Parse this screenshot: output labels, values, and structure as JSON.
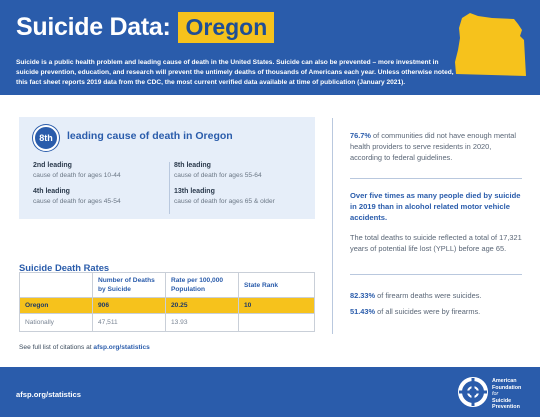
{
  "header": {
    "title": "Suicide Data:",
    "state": "Oregon",
    "intro": "Suicide is a public health problem and leading cause of death in the United States. Suicide can also be prevented – more investment in suicide prevention, education, and research will prevent the untimely deaths of thousands of Americans each year. Unless otherwise noted, this fact sheet reports 2019 data from the CDC, the most current verified data available at time of publication (January 2021)."
  },
  "rank": {
    "badge": "8th",
    "headline": "leading cause of death in Oregon",
    "causes": [
      {
        "label": "2nd leading",
        "sub": "cause of death for ages 10-44"
      },
      {
        "label": "4th leading",
        "sub": "cause of death for ages 45-54"
      },
      {
        "label": "8th leading",
        "sub": "cause of death for ages 55-64"
      },
      {
        "label": "13th leading",
        "sub": "cause of death for ages 65 & older"
      }
    ]
  },
  "table": {
    "title": "Suicide Death Rates",
    "headers": [
      "",
      "Number of Deaths by Suicide",
      "Rate per 100,000 Population",
      "State Rank"
    ],
    "rows": [
      [
        "Oregon",
        "906",
        "20.25",
        "10"
      ],
      [
        "Nationally",
        "47,511",
        "13.93",
        ""
      ]
    ]
  },
  "citation": {
    "prefix": "See full list of citations at",
    "link": "afsp.org/statistics"
  },
  "right": {
    "stat1_value": "76.7%",
    "stat1_text": "of communities did not have enough mental health providers to serve residents in 2020, according to federal guidelines.",
    "highlight": "Over five times as many people died by suicide in 2019 than in alcohol related motor vehicle accidents.",
    "ypll": "The total deaths to suicide reflected a total of 17,321 years of potential life lost (YPLL) before age 65.",
    "stat2_value": "82.33%",
    "stat2_text": "of firearm deaths were suicides.",
    "stat3_value": "51.43%",
    "stat3_text": "of all suicides were by firearms."
  },
  "footer": {
    "url": "afsp.org/statistics",
    "logo_line1": "American",
    "logo_line2": "Foundation",
    "logo_line3": "for",
    "logo_line4": "Suicide",
    "logo_line5": "Prevention"
  },
  "colors": {
    "brand_blue": "#2a5cab",
    "accent_yellow": "#f6c21c",
    "panel_bg": "#e6eef9"
  }
}
